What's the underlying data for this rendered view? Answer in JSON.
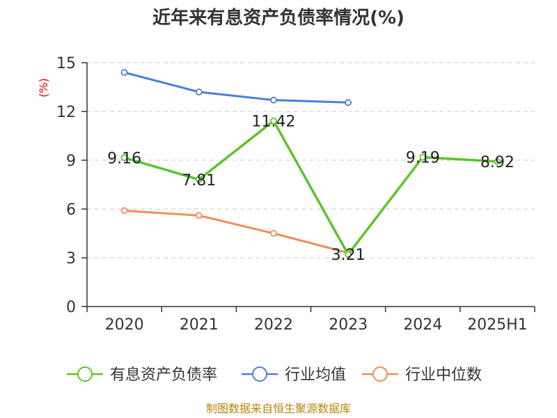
{
  "chart_data": {
    "type": "line",
    "title": "近年来有息资产负债率情况(%)",
    "ylabel": "(%)",
    "categories": [
      "2020",
      "2021",
      "2022",
      "2023",
      "2024",
      "2025H1"
    ],
    "ylim": [
      0,
      15
    ],
    "yticks": [
      "0",
      "3",
      "6",
      "9",
      "12",
      "15"
    ],
    "grid": true,
    "legend_position": "bottom",
    "series": [
      {
        "name": "有息资产负债率",
        "color": "#5cc42b",
        "values": [
          9.16,
          7.81,
          11.42,
          3.21,
          9.19,
          8.92
        ],
        "labels": [
          "9.16",
          "7.81",
          "11.42",
          "3.21",
          "9.19",
          "8.92"
        ]
      },
      {
        "name": "行业均值",
        "color": "#4a7fdc",
        "values": [
          14.4,
          13.2,
          12.7,
          12.55,
          null,
          null
        ]
      },
      {
        "name": "行业中位数",
        "color": "#f28c5a",
        "values": [
          5.9,
          5.6,
          4.5,
          3.3,
          null,
          null
        ]
      }
    ],
    "source": "制图数据来自恒生聚源数据库"
  }
}
